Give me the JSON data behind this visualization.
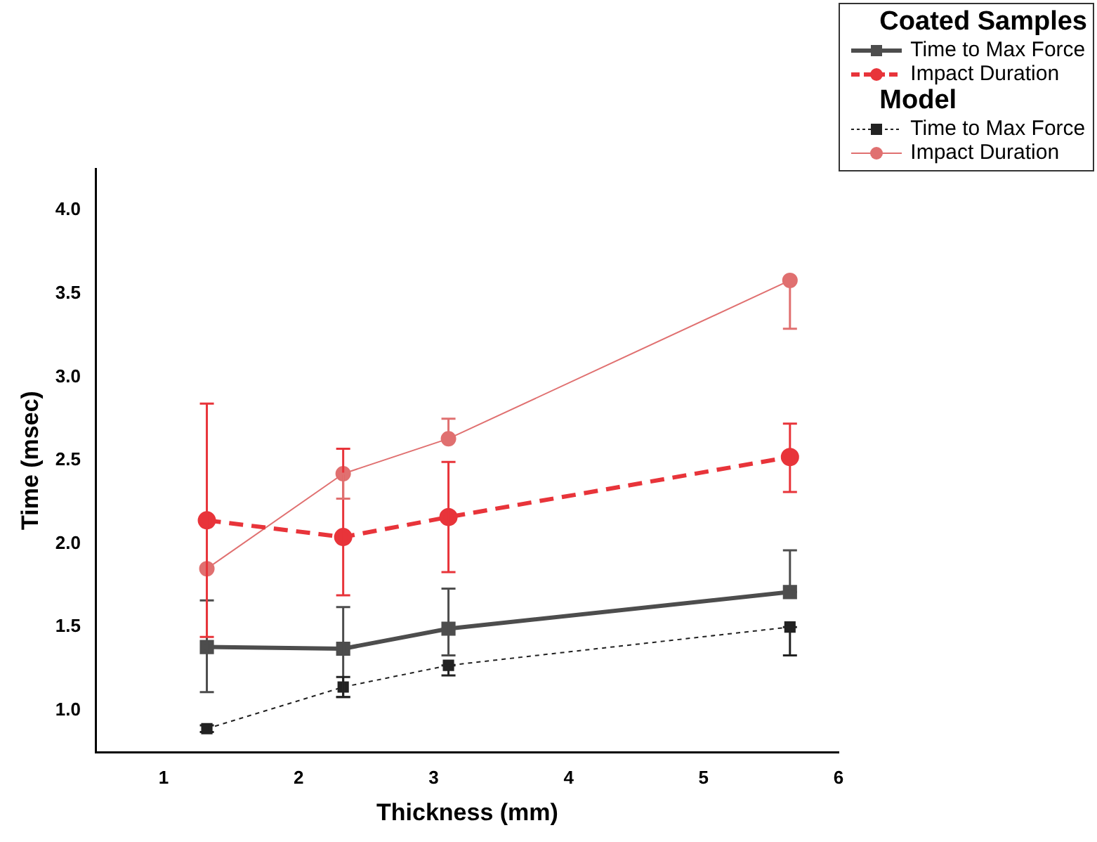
{
  "chart_data": {
    "type": "line",
    "xlabel": "Thickness (mm)",
    "ylabel": "Time (msec)",
    "legend_title": [
      "Coated Samples",
      "Model"
    ],
    "legend": "top right",
    "grid": false,
    "x": [
      1.32,
      2.33,
      3.11,
      5.64
    ],
    "xlim": [
      0.5,
      6
    ],
    "xticks": [
      1,
      2,
      3,
      4,
      5,
      6
    ],
    "ylim": [
      0.75,
      4.25
    ],
    "yticks": [
      {
        "value": 1,
        "label": "1.0"
      },
      {
        "value": 1.5,
        "label": "1.5"
      },
      {
        "value": 2,
        "label": "2.0"
      },
      {
        "value": 2.5,
        "label": "2.5"
      },
      {
        "value": 3,
        "label": "3.0"
      },
      {
        "value": 3.5,
        "label": "3.5"
      },
      {
        "value": 4,
        "label": "4.0"
      }
    ],
    "series": [
      {
        "name": "Time to Max Force",
        "color": "#4d4d4d",
        "marker": "square",
        "line_style": "solid",
        "values": [
          1.38,
          1.37,
          1.49,
          1.71
        ],
        "errors": [
          [
            1.11,
            1.66
          ],
          [
            1.08,
            1.62
          ],
          [
            1.33,
            1.73
          ],
          [
            1.71,
            1.96
          ]
        ]
      },
      {
        "name": "Impact Duration",
        "color": "#e8343a",
        "marker": "circle",
        "line_style": "dashed",
        "values": [
          2.14,
          2.04,
          2.16,
          2.52
        ],
        "errors": [
          [
            1.44,
            2.84
          ],
          [
            1.69,
            2.57
          ],
          [
            1.83,
            2.49
          ],
          [
            2.31,
            2.72
          ]
        ]
      },
      {
        "name": "Time to Max Force",
        "color": "#222222",
        "marker": "square",
        "line_style": "dotted",
        "values": [
          0.89,
          1.14,
          1.27,
          1.5
        ],
        "errors": [
          [
            0.87,
            0.91
          ],
          [
            1.08,
            1.2
          ],
          [
            1.21,
            1.27
          ],
          [
            1.33,
            1.5
          ]
        ]
      },
      {
        "name": "Impact Duration",
        "color": "#e07070",
        "marker": "circle",
        "line_style": "solid",
        "values": [
          1.85,
          2.42,
          2.63,
          3.58
        ],
        "errors": [
          null,
          [
            2.27,
            2.42
          ],
          [
            2.63,
            2.75
          ],
          [
            3.29,
            3.58
          ]
        ]
      }
    ]
  }
}
